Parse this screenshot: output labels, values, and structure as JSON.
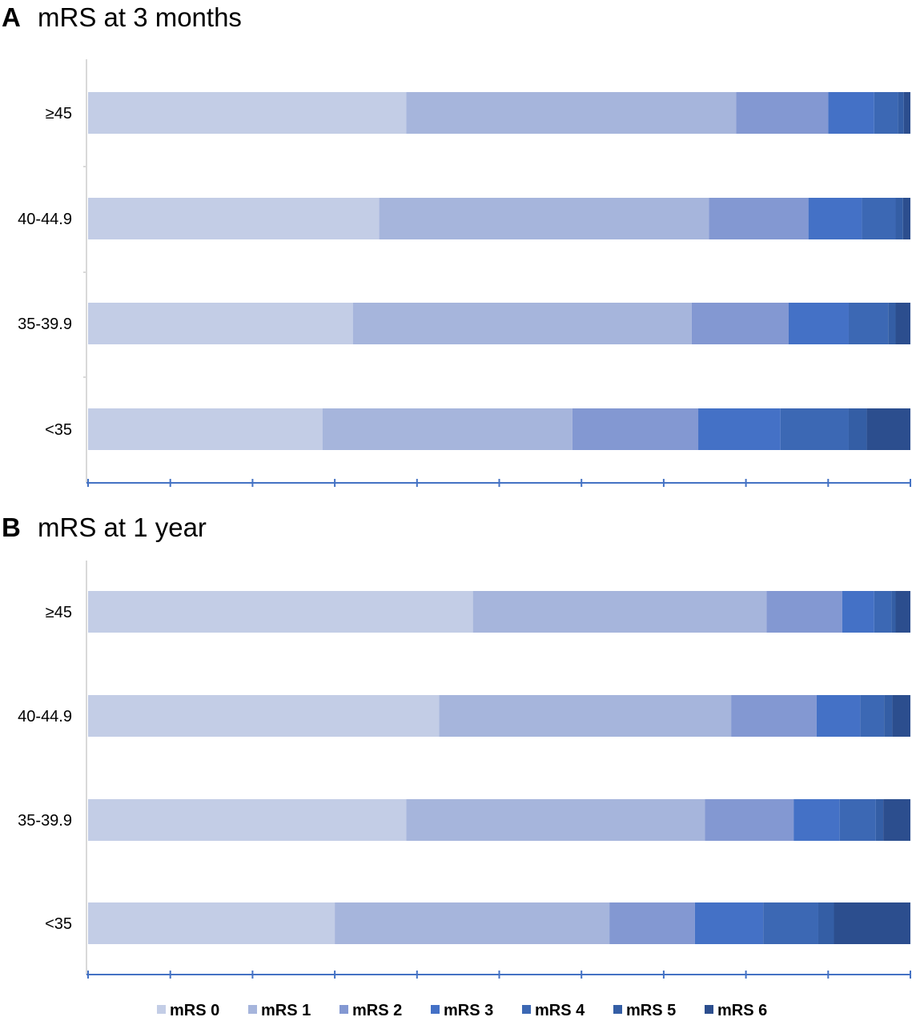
{
  "chart_data": [
    {
      "type": "bar",
      "orientation": "horizontal",
      "stacked": "100%",
      "panel_letter": "A",
      "title": "mRS at 3 months",
      "categories": [
        "≥45",
        "40-44.9",
        "35-39.9",
        "<35"
      ],
      "xlim": [
        0,
        100
      ],
      "grid": false,
      "series": [
        {
          "name": "mRS 0",
          "values": [
            38.7,
            35.4,
            32.2,
            28.5
          ]
        },
        {
          "name": "mRS 1",
          "values": [
            40.1,
            40.1,
            41.2,
            30.4
          ]
        },
        {
          "name": "mRS 2",
          "values": [
            11.2,
            12.1,
            11.8,
            15.3
          ]
        },
        {
          "name": "mRS 3",
          "values": [
            5.6,
            6.5,
            7.3,
            10.0
          ]
        },
        {
          "name": "mRS 4",
          "values": [
            2.9,
            4.1,
            4.8,
            8.3
          ]
        },
        {
          "name": "mRS 5",
          "values": [
            0.7,
            0.9,
            0.9,
            2.2
          ]
        },
        {
          "name": "mRS 6",
          "values": [
            0.8,
            0.9,
            1.8,
            5.3
          ]
        }
      ]
    },
    {
      "type": "bar",
      "orientation": "horizontal",
      "stacked": "100%",
      "panel_letter": "B",
      "title": "mRS at 1 year",
      "categories": [
        "≥45",
        "40-44.9",
        "35-39.9",
        "<35"
      ],
      "xlim": [
        0,
        100
      ],
      "grid": false,
      "series": [
        {
          "name": "mRS 0",
          "values": [
            46.8,
            42.7,
            38.7,
            30.0
          ]
        },
        {
          "name": "mRS 1",
          "values": [
            35.7,
            35.5,
            36.3,
            33.4
          ]
        },
        {
          "name": "mRS 2",
          "values": [
            9.2,
            10.4,
            10.8,
            10.4
          ]
        },
        {
          "name": "mRS 3",
          "values": [
            3.9,
            5.3,
            5.6,
            8.3
          ]
        },
        {
          "name": "mRS 4",
          "values": [
            2.1,
            2.9,
            4.4,
            6.7
          ]
        },
        {
          "name": "mRS 5",
          "values": [
            0.5,
            1.0,
            0.9,
            1.9
          ]
        },
        {
          "name": "mRS 6",
          "values": [
            1.8,
            2.2,
            3.3,
            9.3
          ]
        }
      ]
    }
  ],
  "legend": {
    "position": "bottom",
    "items": [
      "mRS 0",
      "mRS 1",
      "mRS 2",
      "mRS 3",
      "mRS 4",
      "mRS 5",
      "mRS 6"
    ]
  },
  "colors": {
    "mRS 0": "#c3cde6",
    "mRS 1": "#a6b5dc",
    "mRS 2": "#8398d2",
    "mRS 3": "#4471c6",
    "mRS 4": "#3c68b4",
    "mRS 5": "#345ea5",
    "mRS 6": "#2c4e8e",
    "axis": "#4472c4",
    "left_axis": "#d9d9d9"
  }
}
